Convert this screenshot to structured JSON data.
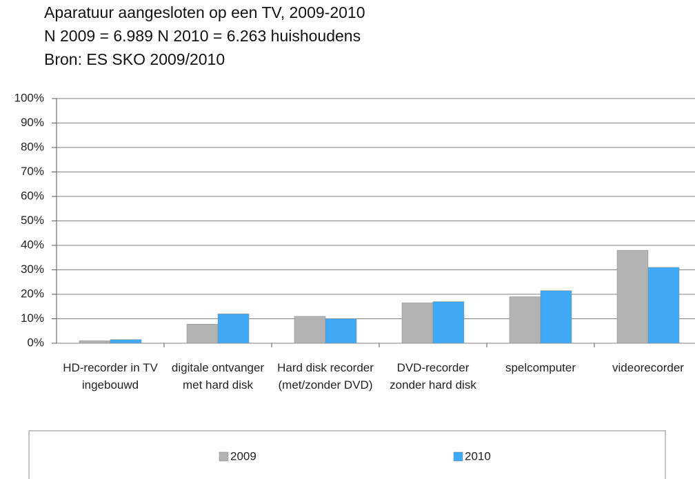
{
  "chart_data": {
    "type": "bar",
    "title": "Aparatuur aangesloten op een TV, 2009-2010",
    "subtitle": "N 2009 = 6.989 N 2010 = 6.263 huishoudens",
    "source": "Bron: ES SKO 2009/2010",
    "categories": [
      "HD-recorder in TV ingebouwd",
      "digitale ontvanger met hard disk",
      "Hard disk recorder (met/zonder DVD)",
      "DVD-recorder zonder hard disk",
      "spelcomputer",
      "videorecorder"
    ],
    "series": [
      {
        "name": "2009",
        "color": "#b3b3b3",
        "values": [
          1,
          7.8,
          11,
          16.5,
          19,
          38
        ]
      },
      {
        "name": "2010",
        "color": "#3fa9f5",
        "values": [
          1.5,
          12,
          10,
          17,
          21.5,
          31
        ]
      }
    ],
    "ylim": [
      0,
      100
    ],
    "yticks": [
      {
        "value": 0,
        "label": "0%"
      },
      {
        "value": 10,
        "label": "10%"
      },
      {
        "value": 20,
        "label": "20%"
      },
      {
        "value": 30,
        "label": "30%"
      },
      {
        "value": 40,
        "label": "40%"
      },
      {
        "value": 50,
        "label": "50%"
      },
      {
        "value": 60,
        "label": "60%"
      },
      {
        "value": 70,
        "label": "70%"
      },
      {
        "value": 80,
        "label": "80%"
      },
      {
        "value": 90,
        "label": "90%"
      },
      {
        "value": 100,
        "label": "100%"
      }
    ],
    "grid": true,
    "legend": "bottom"
  }
}
